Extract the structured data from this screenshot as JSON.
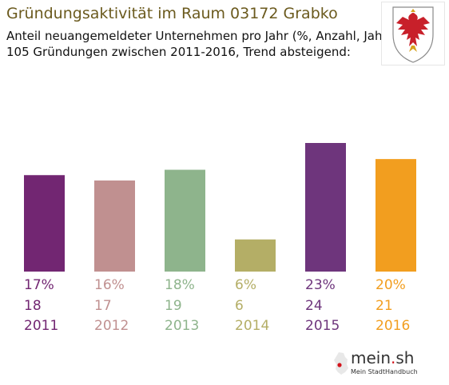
{
  "header": {
    "title": "Gründungsaktivität im Raum 03172 Grabko",
    "subtitle_line1": "Anteil neuangemeldeter Unternehmen pro Jahr (%, Anzahl, Jahr)",
    "subtitle_line2": "105 Gründungen zwischen 2011-2016, Trend absteigend:"
  },
  "chart_data": {
    "type": "bar",
    "categories": [
      "2011",
      "2012",
      "2013",
      "2014",
      "2015",
      "2016"
    ],
    "values": [
      18,
      17,
      19,
      6,
      24,
      21
    ],
    "percents": [
      "17%",
      "16%",
      "18%",
      "6%",
      "23%",
      "20%"
    ],
    "colors": [
      "#722672",
      "#c09090",
      "#8eb48c",
      "#b4ae66",
      "#6e357c",
      "#f29e1f"
    ],
    "ylim": [
      0,
      24
    ],
    "title": "Gründungsaktivität im Raum 03172 Grabko",
    "xlabel": "",
    "ylabel": "",
    "grid": false,
    "legend": "none"
  },
  "logo": {
    "name_prefix": "mein",
    "name_dot": ".",
    "name_suffix": "sh",
    "tagline": "Mein StadtHandbuch"
  }
}
